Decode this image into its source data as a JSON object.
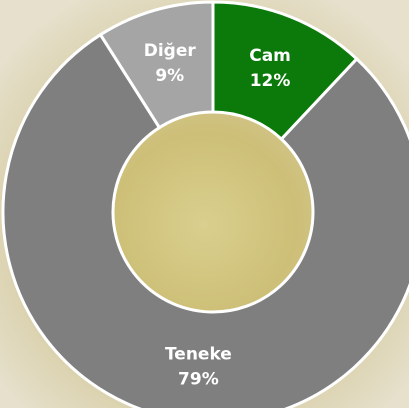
{
  "chart_data": {
    "type": "donut",
    "categories": [
      "Cam",
      "Teneke",
      "Diğer"
    ],
    "values": [
      12,
      79,
      9
    ],
    "value_labels": [
      "12%",
      "79%",
      "9%"
    ],
    "colors": [
      "#0b7a0b",
      "#7f7f7f",
      "#a5a5a5"
    ]
  }
}
